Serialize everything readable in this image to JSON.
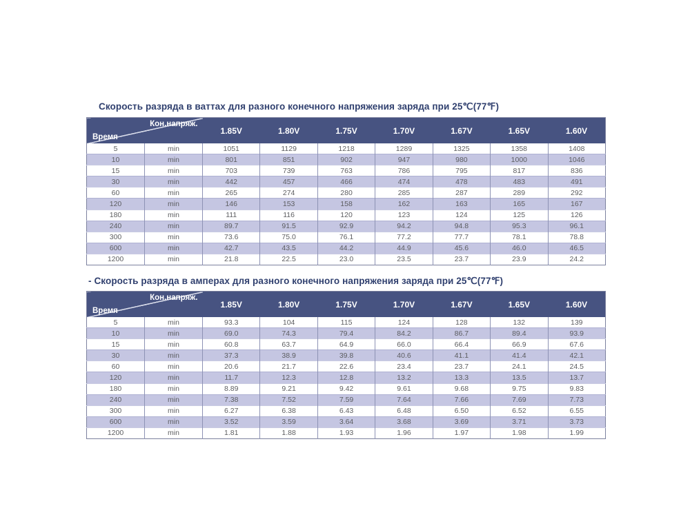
{
  "colors": {
    "header_bg": "#475381",
    "header_text": "#ffffff",
    "stripe_bg": "#c5c6e2",
    "title_text": "#2f3f6e",
    "cell_text": "#5c5d60"
  },
  "tables": [
    {
      "title": "Скорость разряда в ваттах для разного конечного напряжения заряда при 25℃(77℉)",
      "corner": {
        "top_right": "Кон.напряж.",
        "bottom_left": "Время"
      },
      "columns": [
        "1.85V",
        "1.80V",
        "1.75V",
        "1.70V",
        "1.67V",
        "1.65V",
        "1.60V"
      ],
      "rows": [
        {
          "time": "5",
          "unit": "min",
          "values": [
            "1051",
            "1129",
            "1218",
            "1289",
            "1325",
            "1358",
            "1408"
          ]
        },
        {
          "time": "10",
          "unit": "min",
          "values": [
            "801",
            "851",
            "902",
            "947",
            "980",
            "1000",
            "1046"
          ]
        },
        {
          "time": "15",
          "unit": "min",
          "values": [
            "703",
            "739",
            "763",
            "786",
            "795",
            "817",
            "836"
          ]
        },
        {
          "time": "30",
          "unit": "min",
          "values": [
            "442",
            "457",
            "466",
            "474",
            "478",
            "483",
            "491"
          ]
        },
        {
          "time": "60",
          "unit": "min",
          "values": [
            "265",
            "274",
            "280",
            "285",
            "287",
            "289",
            "292"
          ]
        },
        {
          "time": "120",
          "unit": "min",
          "values": [
            "146",
            "153",
            "158",
            "162",
            "163",
            "165",
            "167"
          ]
        },
        {
          "time": "180",
          "unit": "min",
          "values": [
            "111",
            "116",
            "120",
            "123",
            "124",
            "125",
            "126"
          ]
        },
        {
          "time": "240",
          "unit": "min",
          "values": [
            "89.7",
            "91.5",
            "92.9",
            "94.2",
            "94.8",
            "95.3",
            "96.1"
          ]
        },
        {
          "time": "300",
          "unit": "min",
          "values": [
            "73.6",
            "75.0",
            "76.1",
            "77.2",
            "77.7",
            "78.1",
            "78.8"
          ]
        },
        {
          "time": "600",
          "unit": "min",
          "values": [
            "42.7",
            "43.5",
            "44.2",
            "44.9",
            "45.6",
            "46.0",
            "46.5"
          ]
        },
        {
          "time": "1200",
          "unit": "min",
          "values": [
            "21.8",
            "22.5",
            "23.0",
            "23.5",
            "23.7",
            "23.9",
            "24.2"
          ]
        }
      ]
    },
    {
      "title": "- Скорость разряда в амперах для разного конечного напряжения заряда при 25℃(77℉)",
      "corner": {
        "top_right": "Кон.напряж.",
        "bottom_left": "Время"
      },
      "columns": [
        "1.85V",
        "1.80V",
        "1.75V",
        "1.70V",
        "1.67V",
        "1.65V",
        "1.60V"
      ],
      "rows": [
        {
          "time": "5",
          "unit": "min",
          "values": [
            "93.3",
            "104",
            "115",
            "124",
            "128",
            "132",
            "139"
          ]
        },
        {
          "time": "10",
          "unit": "min",
          "values": [
            "69.0",
            "74.3",
            "79.4",
            "84.2",
            "86.7",
            "89.4",
            "93.9"
          ]
        },
        {
          "time": "15",
          "unit": "min",
          "values": [
            "60.8",
            "63.7",
            "64.9",
            "66.0",
            "66.4",
            "66.9",
            "67.6"
          ]
        },
        {
          "time": "30",
          "unit": "min",
          "values": [
            "37.3",
            "38.9",
            "39.8",
            "40.6",
            "41.1",
            "41.4",
            "42.1"
          ]
        },
        {
          "time": "60",
          "unit": "min",
          "values": [
            "20.6",
            "21.7",
            "22.6",
            "23.4",
            "23.7",
            "24.1",
            "24.5"
          ]
        },
        {
          "time": "120",
          "unit": "min",
          "values": [
            "11.7",
            "12.3",
            "12.8",
            "13.2",
            "13.3",
            "13.5",
            "13.7"
          ]
        },
        {
          "time": "180",
          "unit": "min",
          "values": [
            "8.89",
            "9.21",
            "9.42",
            "9.61",
            "9.68",
            "9.75",
            "9.83"
          ]
        },
        {
          "time": "240",
          "unit": "min",
          "values": [
            "7.38",
            "7.52",
            "7.59",
            "7.64",
            "7.66",
            "7.69",
            "7.73"
          ]
        },
        {
          "time": "300",
          "unit": "min",
          "values": [
            "6.27",
            "6.38",
            "6.43",
            "6.48",
            "6.50",
            "6.52",
            "6.55"
          ]
        },
        {
          "time": "600",
          "unit": "min",
          "values": [
            "3.52",
            "3.59",
            "3.64",
            "3.68",
            "3.69",
            "3.71",
            "3.73"
          ]
        },
        {
          "time": "1200",
          "unit": "min",
          "values": [
            "1.81",
            "1.88",
            "1.93",
            "1.96",
            "1.97",
            "1.98",
            "1.99"
          ]
        }
      ]
    }
  ]
}
